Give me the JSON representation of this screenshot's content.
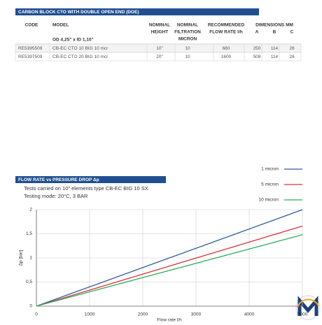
{
  "table": {
    "title": "CARBON BLOCK CTO WITH DOUBLE OPEN END (DOE)",
    "columns": [
      [
        "CODE"
      ],
      [
        "MODEL"
      ],
      [
        "NOMINAL",
        "HEIGHT"
      ],
      [
        "NOMINAL",
        "FILTRATION",
        "MICRON"
      ],
      [
        "RECOMMENDED",
        "FLOW RATE l/h"
      ],
      [
        "A"
      ],
      [
        "B"
      ],
      [
        "C"
      ]
    ],
    "group": "DIMENSIONS MM",
    "subheader": "OD 4,25\" x ID 1,10\"",
    "rows": [
      [
        "RE5395509",
        "CB-EC CTO 10 BIG 10 mcr",
        "10\"",
        "10",
        "680",
        "250",
        "114",
        "26"
      ],
      [
        "RE5397509",
        "CB-EC CTO 20 BIG 10 mcr",
        "20\"",
        "10",
        "1600",
        "508",
        "114",
        "26"
      ]
    ]
  },
  "chart_data": {
    "type": "line",
    "title": "FLOW RATE vs PRESSURE DROP Δp",
    "subtitle": [
      "Tests carried on 10\" elements type CB-EC BIG 10 SX.",
      "Testing mode: 20°C, 3 BAR"
    ],
    "x_label": "Flow rate l/h",
    "y_label": "Δp [bar]",
    "x": [
      0,
      5000
    ],
    "series": [
      {
        "name": "1 micron",
        "color": "#2e5c9e",
        "values": [
          0,
          2
        ]
      },
      {
        "name": "5 micron",
        "color": "#d9343b",
        "values": [
          0,
          1.66
        ]
      },
      {
        "name": "10 micron",
        "color": "#2fae5e",
        "values": [
          0,
          1.48
        ]
      }
    ],
    "xlim": [
      0,
      5000
    ],
    "ylim": [
      0,
      2
    ],
    "xticks": [
      0,
      1000,
      2000,
      3000,
      4000,
      5000
    ],
    "yticks": [
      0,
      {
        "value": 0.5,
        "label": "0,5"
      },
      1,
      {
        "value": 1.5,
        "label": "1,5"
      },
      2
    ],
    "grid": true
  }
}
